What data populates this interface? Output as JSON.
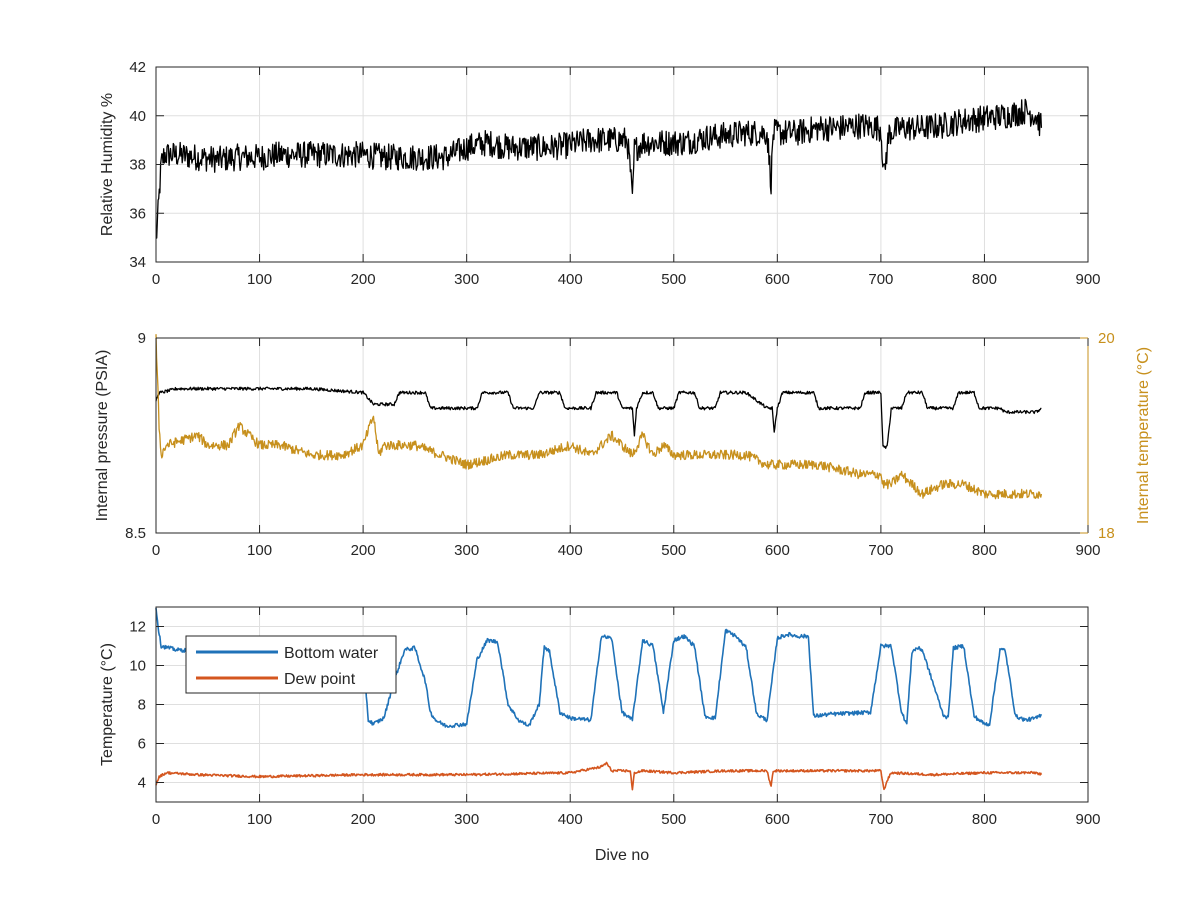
{
  "colors": {
    "humidity": "#000000",
    "pressure": "#000000",
    "internal_temp": "#c7901d",
    "bottom_water": "#1f72b8",
    "dew_point": "#d4561f",
    "axis": "#262626",
    "grid": "#dfdfdf"
  },
  "chart_data": [
    {
      "type": "line",
      "title": "",
      "xlabel": "",
      "ylabel": "Relative Humidity %",
      "xlim": [
        0,
        900
      ],
      "ylim": [
        34,
        42
      ],
      "xticks": [
        "0",
        "100",
        "200",
        "300",
        "400",
        "500",
        "600",
        "700",
        "800",
        "900"
      ],
      "yticks": [
        "34",
        "36",
        "38",
        "40",
        "42"
      ],
      "grid": true,
      "series": [
        {
          "name": "",
          "color": "#000000",
          "noise": 0.55,
          "x": [
            0,
            2,
            5,
            8,
            20,
            40,
            60,
            80,
            100,
            120,
            140,
            160,
            180,
            200,
            220,
            240,
            260,
            280,
            300,
            320,
            340,
            360,
            380,
            400,
            420,
            440,
            455,
            458,
            460,
            462,
            470,
            490,
            510,
            530,
            550,
            570,
            590,
            594,
            596,
            600,
            620,
            640,
            660,
            680,
            700,
            703,
            705,
            708,
            720,
            740,
            760,
            780,
            800,
            820,
            840,
            850,
            855
          ],
          "y": [
            34.8,
            36,
            38,
            38.4,
            38.4,
            38.3,
            38.2,
            38.3,
            38.3,
            38.4,
            38.4,
            38.4,
            38.4,
            38.4,
            38.3,
            38.3,
            38.3,
            38.3,
            38.7,
            38.9,
            38.7,
            38.7,
            38.7,
            38.8,
            39,
            39,
            39,
            37.8,
            36.4,
            38.6,
            38.9,
            38.9,
            38.9,
            39.1,
            39.2,
            39.3,
            39.3,
            37.3,
            39.3,
            39.3,
            39.3,
            39.5,
            39.5,
            39.6,
            39.5,
            37.5,
            38.3,
            39.3,
            39.5,
            39.5,
            39.6,
            39.8,
            39.9,
            40,
            40.2,
            40,
            39.5
          ]
        }
      ]
    },
    {
      "type": "line",
      "title": "",
      "xlabel": "",
      "ylabel": "Internal pressure (PSIA)",
      "y2label": "Internal temperature (°C)",
      "xlim": [
        0,
        900
      ],
      "ylim": [
        8.5,
        9
      ],
      "y2lim": [
        18,
        20
      ],
      "xticks": [
        "0",
        "100",
        "200",
        "300",
        "400",
        "500",
        "600",
        "700",
        "800",
        "900"
      ],
      "yticks": [
        "8.5",
        "9"
      ],
      "y2ticks": [
        "18",
        "20"
      ],
      "grid": true,
      "series": [
        {
          "name": "",
          "axis": "left",
          "color": "#000000",
          "noise": 0.004,
          "x": [
            0,
            3,
            5,
            20,
            50,
            80,
            100,
            150,
            200,
            210,
            220,
            230,
            235,
            260,
            265,
            300,
            310,
            315,
            340,
            345,
            365,
            370,
            390,
            395,
            420,
            425,
            445,
            450,
            460,
            462,
            464,
            470,
            480,
            485,
            500,
            505,
            520,
            525,
            540,
            545,
            570,
            590,
            595,
            597,
            600,
            605,
            635,
            640,
            680,
            685,
            700,
            702,
            706,
            710,
            720,
            725,
            740,
            745,
            770,
            775,
            790,
            795,
            815,
            820,
            840,
            850,
            855
          ],
          "y": [
            8.84,
            8.86,
            8.86,
            8.87,
            8.87,
            8.87,
            8.87,
            8.87,
            8.86,
            8.83,
            8.83,
            8.83,
            8.86,
            8.86,
            8.82,
            8.82,
            8.82,
            8.86,
            8.86,
            8.82,
            8.82,
            8.86,
            8.86,
            8.82,
            8.82,
            8.86,
            8.86,
            8.82,
            8.82,
            8.75,
            8.82,
            8.86,
            8.86,
            8.82,
            8.82,
            8.86,
            8.86,
            8.82,
            8.82,
            8.86,
            8.86,
            8.82,
            8.82,
            8.76,
            8.82,
            8.86,
            8.86,
            8.82,
            8.82,
            8.86,
            8.86,
            8.72,
            8.72,
            8.82,
            8.82,
            8.86,
            8.86,
            8.82,
            8.82,
            8.86,
            8.86,
            8.82,
            8.82,
            8.81,
            8.81,
            8.81,
            8.82
          ]
        },
        {
          "name": "",
          "axis": "right",
          "color": "#c7901d",
          "noise": 0.05,
          "x": [
            0,
            3,
            5,
            10,
            40,
            50,
            70,
            80,
            100,
            120,
            150,
            180,
            200,
            210,
            215,
            220,
            250,
            300,
            340,
            370,
            400,
            420,
            440,
            450,
            460,
            470,
            480,
            490,
            500,
            530,
            550,
            570,
            590,
            595,
            600,
            620,
            640,
            680,
            700,
            702,
            710,
            720,
            740,
            760,
            780,
            800,
            820,
            840,
            850,
            855
          ],
          "y": [
            20,
            19.1,
            18.8,
            18.9,
            19,
            18.9,
            18.9,
            19.1,
            18.9,
            18.9,
            18.8,
            18.8,
            18.9,
            19.2,
            18.8,
            18.9,
            18.9,
            18.7,
            18.8,
            18.8,
            18.9,
            18.8,
            19,
            18.9,
            18.8,
            19,
            18.8,
            18.9,
            18.8,
            18.8,
            18.8,
            18.8,
            18.7,
            18.7,
            18.7,
            18.7,
            18.7,
            18.6,
            18.6,
            18.5,
            18.5,
            18.6,
            18.4,
            18.5,
            18.5,
            18.4,
            18.4,
            18.4,
            18.4,
            18.4
          ]
        }
      ]
    },
    {
      "type": "line",
      "title": "",
      "xlabel": "Dive no",
      "ylabel": "Temperature (°C)",
      "xlim": [
        0,
        900
      ],
      "ylim": [
        3,
        13
      ],
      "xticks": [
        "0",
        "100",
        "200",
        "300",
        "400",
        "500",
        "600",
        "700",
        "800",
        "900"
      ],
      "yticks": [
        "4",
        "6",
        "8",
        "10",
        "12"
      ],
      "grid": true,
      "legend_position": "top-left",
      "series": [
        {
          "name": "Bottom water",
          "color": "#1f72b8",
          "noise": 0.1,
          "x": [
            0,
            2,
            5,
            20,
            60,
            100,
            150,
            200,
            205,
            210,
            220,
            230,
            240,
            250,
            260,
            265,
            270,
            280,
            300,
            310,
            320,
            330,
            340,
            350,
            360,
            370,
            375,
            380,
            390,
            400,
            420,
            430,
            440,
            450,
            460,
            470,
            480,
            490,
            500,
            510,
            520,
            530,
            540,
            550,
            560,
            570,
            580,
            590,
            600,
            610,
            620,
            630,
            635,
            650,
            690,
            700,
            710,
            720,
            725,
            730,
            735,
            740,
            760,
            765,
            770,
            780,
            790,
            800,
            805,
            815,
            820,
            830,
            840,
            850,
            855
          ],
          "y": [
            13,
            12,
            11,
            10.8,
            10.7,
            10.7,
            10.6,
            10.6,
            7.2,
            7,
            7.3,
            9.2,
            10.8,
            10.9,
            9.2,
            7.6,
            7.2,
            6.9,
            7,
            10.3,
            11.3,
            11.2,
            8,
            7.2,
            6.9,
            8,
            11,
            10.7,
            7.6,
            7.3,
            7.2,
            11.5,
            11.4,
            7.6,
            7.2,
            11.3,
            11,
            7.6,
            11.3,
            11.5,
            11,
            7.4,
            7.3,
            11.8,
            11.5,
            10.9,
            7.5,
            7.2,
            11.4,
            11.6,
            11.5,
            11.5,
            7.4,
            7.5,
            7.6,
            11,
            11,
            7.6,
            7,
            10.7,
            10.9,
            10.8,
            7.5,
            7.3,
            10.9,
            11,
            7.4,
            7,
            7,
            10.8,
            10.8,
            7.4,
            7.2,
            7.3,
            7.5
          ]
        },
        {
          "name": "Dew point",
          "color": "#d4561f",
          "noise": 0.06,
          "x": [
            0,
            3,
            10,
            40,
            100,
            200,
            300,
            400,
            430,
            435,
            440,
            458,
            460,
            462,
            470,
            500,
            550,
            590,
            594,
            596,
            600,
            650,
            700,
            703,
            706,
            710,
            750,
            800,
            850,
            855
          ],
          "y": [
            3.9,
            4.3,
            4.5,
            4.4,
            4.3,
            4.4,
            4.4,
            4.5,
            4.8,
            5,
            4.6,
            4.6,
            3.6,
            4.5,
            4.6,
            4.5,
            4.6,
            4.6,
            3.8,
            4.6,
            4.6,
            4.6,
            4.6,
            3.6,
            4.1,
            4.5,
            4.4,
            4.5,
            4.5,
            4.4
          ]
        }
      ]
    }
  ]
}
